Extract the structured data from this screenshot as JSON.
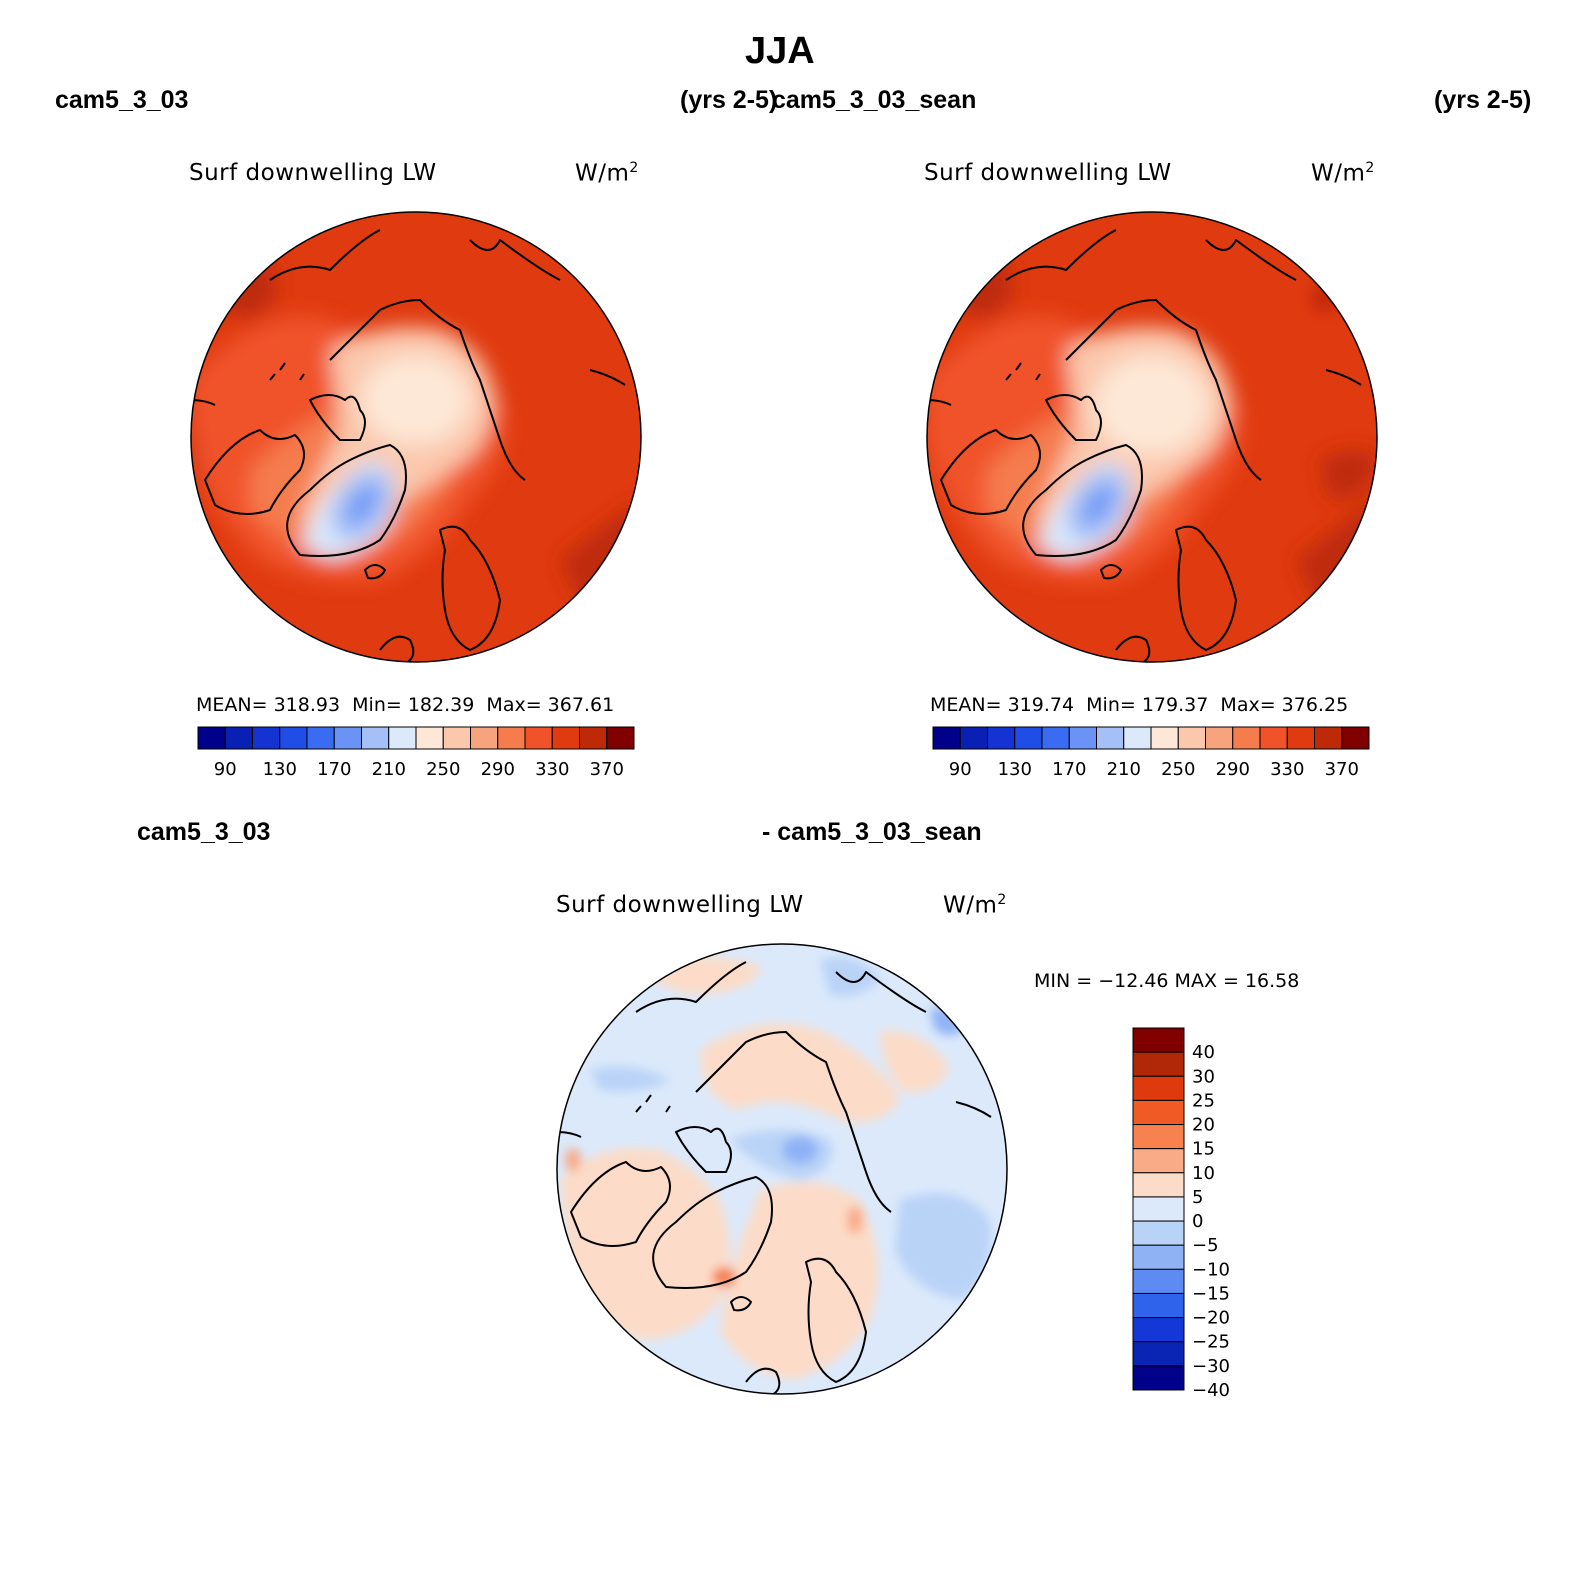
{
  "title": "JJA",
  "colors": {
    "abs_scale": [
      "#00008b",
      "#0a1fb4",
      "#1433d2",
      "#1f4de6",
      "#3a6cf2",
      "#6b93f5",
      "#a5c0f7",
      "#dbe9fb",
      "#fde7d6",
      "#fbc8ad",
      "#f7a47e",
      "#f57c4d",
      "#f0522a",
      "#e03a10",
      "#be2a08",
      "#800000"
    ],
    "diff_scale": [
      "#800000",
      "#b02808",
      "#dd3b0e",
      "#f05a24",
      "#f7814f",
      "#f9aa87",
      "#fcdcc8",
      "#dbe9fb",
      "#b9d3f7",
      "#8fb2f5",
      "#5d8bf2",
      "#2f63ec",
      "#1438d6",
      "#0a24b4",
      "#00008b"
    ]
  },
  "panels": [
    {
      "name": "panel-cam5-3-03",
      "case_label": "cam5_3_03",
      "years_label": "(yrs 2-5)",
      "variable": "Surf downwelling LW",
      "units_base": "W/m",
      "units_exp": "2",
      "stats": {
        "mean_label": "MEAN=",
        "mean": "318.93",
        "min_label": "Min=",
        "min": "182.39",
        "max_label": "Max=",
        "max": "367.61"
      },
      "colorbar_ticks": [
        "90",
        "130",
        "170",
        "210",
        "250",
        "290",
        "330",
        "370"
      ]
    },
    {
      "name": "panel-cam5-3-03-sean",
      "case_label": "cam5_3_03_sean",
      "years_label": "(yrs 2-5)",
      "variable": "Surf downwelling LW",
      "units_base": "W/m",
      "units_exp": "2",
      "stats": {
        "mean_label": "MEAN=",
        "mean": "319.74",
        "min_label": "Min=",
        "min": "179.37",
        "max_label": "Max=",
        "max": "376.25"
      },
      "colorbar_ticks": [
        "90",
        "130",
        "170",
        "210",
        "250",
        "290",
        "330",
        "370"
      ]
    }
  ],
  "diff_panel": {
    "left_label": "cam5_3_03",
    "right_label": "- cam5_3_03_sean",
    "variable": "Surf downwelling LW",
    "units_base": "W/m",
    "units_exp": "2",
    "minmax": "MIN = −12.46 MAX =   16.58",
    "colorbar_ticks": [
      "40",
      "30",
      "25",
      "20",
      "15",
      "10",
      "5",
      "0",
      "−5",
      "−10",
      "−15",
      "−20",
      "−25",
      "−30",
      "−40"
    ]
  }
}
